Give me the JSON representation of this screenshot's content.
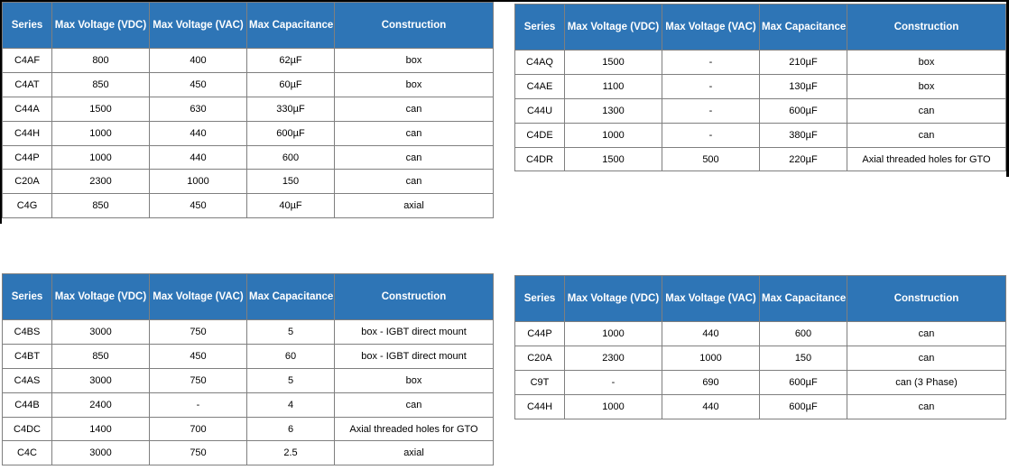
{
  "colors": {
    "header_bg": "#2E75B6",
    "header_text": "#FFFFFF",
    "grid_line": "#7F7F7F",
    "cell_text": "#000000",
    "frame_edge": "#000000"
  },
  "columns": [
    "Series",
    "Max Voltage (VDC)",
    "Max Voltage (VAC)",
    "Max Capacitance",
    "Construction"
  ],
  "tables": [
    {
      "name": "top-left",
      "rows": [
        [
          "C4AF",
          "800",
          "400",
          "62µF",
          "box"
        ],
        [
          "C4AT",
          "850",
          "450",
          "60µF",
          "box"
        ],
        [
          "C44A",
          "1500",
          "630",
          "330µF",
          "can"
        ],
        [
          "C44H",
          "1000",
          "440",
          "600µF",
          "can"
        ],
        [
          "C44P",
          "1000",
          "440",
          "600",
          "can"
        ],
        [
          "C20A",
          "2300",
          "1000",
          "150",
          "can"
        ],
        [
          "C4G",
          "850",
          "450",
          "40µF",
          "axial"
        ]
      ]
    },
    {
      "name": "top-right",
      "rows": [
        [
          "C4AQ",
          "1500",
          "-",
          "210µF",
          "box"
        ],
        [
          "C4AE",
          "1100",
          "-",
          "130µF",
          "box"
        ],
        [
          "C44U",
          "1300",
          "-",
          "600µF",
          "can"
        ],
        [
          "C4DE",
          "1000",
          "-",
          "380µF",
          "can"
        ],
        [
          "C4DR",
          "1500",
          "500",
          "220µF",
          "Axial threaded holes for GTO"
        ]
      ]
    },
    {
      "name": "bottom-left",
      "rows": [
        [
          "C4BS",
          "3000",
          "750",
          "5",
          "box - IGBT direct mount"
        ],
        [
          "C4BT",
          "850",
          "450",
          "60",
          "box - IGBT direct mount"
        ],
        [
          "C4AS",
          "3000",
          "750",
          "5",
          "box"
        ],
        [
          "C44B",
          "2400",
          "-",
          "4",
          "can"
        ],
        [
          "C4DC",
          "1400",
          "700",
          "6",
          "Axial threaded holes for GTO"
        ],
        [
          "C4C",
          "3000",
          "750",
          "2.5",
          "axial"
        ]
      ]
    },
    {
      "name": "bottom-right",
      "rows": [
        [
          "C44P",
          "1000",
          "440",
          "600",
          "can"
        ],
        [
          "C20A",
          "2300",
          "1000",
          "150",
          "can"
        ],
        [
          "C9T",
          "-",
          "690",
          "600µF",
          "can (3 Phase)"
        ],
        [
          "C44H",
          "1000",
          "440",
          "600µF",
          "can"
        ]
      ]
    }
  ]
}
